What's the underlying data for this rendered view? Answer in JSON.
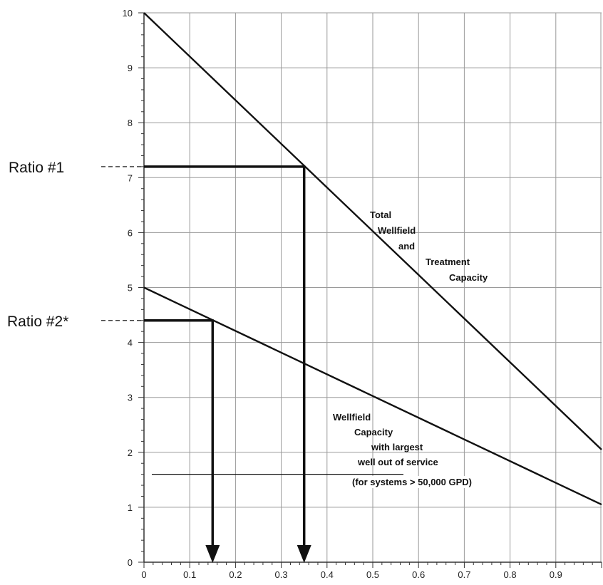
{
  "chart_data": {
    "type": "line",
    "title": "",
    "xlabel": "",
    "ylabel": "",
    "xlim": [
      0,
      1.0
    ],
    "ylim": [
      0,
      10
    ],
    "grid": true,
    "x_ticks": [
      "0",
      "0.1",
      "0.2",
      "0.3",
      "0.4",
      "0.5",
      "0.6",
      "0.7",
      "0.8",
      "0.9"
    ],
    "y_ticks": [
      "0",
      "1",
      "2",
      "3",
      "4",
      "5",
      "6",
      "7",
      "8",
      "9",
      "10"
    ],
    "series": [
      {
        "name": "",
        "x": [
          0,
          1.0
        ],
        "y": [
          10,
          2.05
        ]
      },
      {
        "name": "",
        "x": [
          0,
          1.0
        ],
        "y": [
          5,
          1.05
        ]
      }
    ],
    "annotations": [
      {
        "lines": [
          "Total",
          "Wellfield",
          "and",
          "Treatment",
          "Capacity"
        ]
      },
      {
        "lines": [
          "Wellfield",
          "Capacity",
          "with largest",
          "well out of service",
          "(for systems > 50,000 GPD)"
        ]
      }
    ],
    "ratio_markers": [
      {
        "label": "Ratio #1",
        "y": 7.2,
        "x": 0.35
      },
      {
        "label": "Ratio #2*",
        "y": 4.4,
        "x": 0.15
      }
    ],
    "reference_line_y": 1.6,
    "colors": {
      "line": "#111111",
      "grid": "#9a9a9a"
    }
  }
}
